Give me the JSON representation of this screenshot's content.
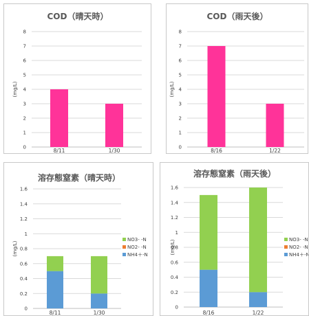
{
  "colors": {
    "cod_bar": "#FF3399",
    "no3": "#92D050",
    "no2": "#ED7D31",
    "nh4": "#5B9BD5"
  },
  "chart_data": [
    {
      "id": "cod-sunny",
      "type": "bar",
      "title": "COD（晴天時）",
      "ylabel": "(mg/L)",
      "categories": [
        "8/11",
        "1/30"
      ],
      "values": [
        4,
        3
      ],
      "ylim": [
        0,
        8
      ],
      "yticks": [
        "0",
        "1",
        "2",
        "3",
        "4",
        "5",
        "6",
        "7",
        "8"
      ],
      "grid": true
    },
    {
      "id": "cod-rainy",
      "type": "bar",
      "title": "COD（雨天後）",
      "ylabel": "(mg/L)",
      "categories": [
        "8/16",
        "1/22"
      ],
      "values": [
        7,
        3
      ],
      "ylim": [
        0,
        8
      ],
      "yticks": [
        "0",
        "1",
        "2",
        "3",
        "4",
        "5",
        "6",
        "7",
        "8"
      ],
      "grid": true
    },
    {
      "id": "nitrogen-sunny",
      "type": "bar",
      "stacked": true,
      "title": "溶存態窒素（晴天時）",
      "ylabel": "(mg/L)",
      "categories": [
        "8/11",
        "1/30"
      ],
      "series": [
        {
          "name": "NH4＋-N",
          "values": [
            0.5,
            0.2
          ]
        },
        {
          "name": "NO2- -N",
          "values": [
            0,
            0
          ]
        },
        {
          "name": "NO3- -N",
          "values": [
            0.2,
            0.5
          ]
        }
      ],
      "legend_labels": [
        "NO3- -N",
        "NO2- -N",
        "NH4＋-N"
      ],
      "ylim": [
        0,
        1.6
      ],
      "yticks": [
        "0",
        "0.2",
        "0.4",
        "0.6",
        "0.8",
        "1",
        "1.2",
        "1.4",
        "1.6"
      ],
      "grid": true,
      "legend": "right"
    },
    {
      "id": "nitrogen-rainy",
      "type": "bar",
      "stacked": true,
      "title": "溶存態窒素（雨天後）",
      "ylabel": "(mg/L)",
      "categories": [
        "8/16",
        "1/22"
      ],
      "series": [
        {
          "name": "NH4＋-N",
          "values": [
            0.5,
            0.2
          ]
        },
        {
          "name": "NO2- -N",
          "values": [
            0,
            0
          ]
        },
        {
          "name": "NO3- -N",
          "values": [
            1.0,
            1.4
          ]
        }
      ],
      "legend_labels": [
        "NO3- -N",
        "NO2- -N",
        "NH4＋-N"
      ],
      "ylim": [
        0,
        1.6
      ],
      "yticks": [
        "0",
        "0.2",
        "0.4",
        "0.6",
        "0.8",
        "1",
        "1.2",
        "1.4",
        "1.6"
      ],
      "grid": true,
      "legend": "right"
    }
  ]
}
